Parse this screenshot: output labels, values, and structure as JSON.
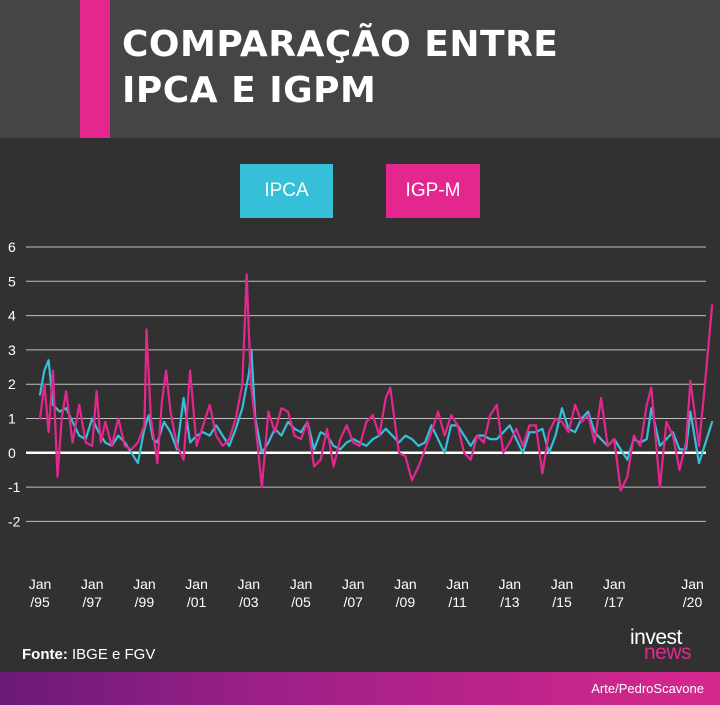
{
  "header": {
    "title_line1": "COMPARAÇÃO ENTRE",
    "title_line2": "IPCA E IGPM",
    "accent_color": "#e4278e",
    "background_color": "#454545"
  },
  "legend": {
    "ipca_label": "IPCA",
    "igpm_label": "IGP-M"
  },
  "footer": {
    "source_label": "Fonte:",
    "source_text": " IBGE e FGV",
    "brand_top": "invest",
    "brand_bottom": "news",
    "credit": "Arte/PedroScavone"
  },
  "chart_data": {
    "type": "line",
    "xlabel": "",
    "ylabel": "",
    "ylim": [
      -2,
      6
    ],
    "yticks": [
      "6",
      "5",
      "4",
      "3",
      "2",
      "1",
      "0",
      "-1",
      "-2"
    ],
    "ytick_values": [
      6,
      5,
      4,
      3,
      2,
      1,
      0,
      -1,
      -2
    ],
    "grid": true,
    "legend_position": "top-center",
    "x_tick_labels": [
      {
        "line1": "Jan",
        "line2": "/95",
        "date": 1995.0
      },
      {
        "line1": "Jan",
        "line2": "/97",
        "date": 1997.0
      },
      {
        "line1": "Jan",
        "line2": "/99",
        "date": 1999.0
      },
      {
        "line1": "Jan",
        "line2": "/01",
        "date": 2001.0
      },
      {
        "line1": "Jan",
        "line2": "/03",
        "date": 2003.0
      },
      {
        "line1": "Jan",
        "line2": "/05",
        "date": 2005.0
      },
      {
        "line1": "Jan",
        "line2": "/07",
        "date": 2007.0
      },
      {
        "line1": "Jan",
        "line2": "/09",
        "date": 2009.0
      },
      {
        "line1": "Jan",
        "line2": "/11",
        "date": 2011.0
      },
      {
        "line1": "Jan",
        "line2": "/13",
        "date": 2013.0
      },
      {
        "line1": "Jan",
        "line2": "/15",
        "date": 2015.0
      },
      {
        "line1": "Jan",
        "line2": "/17",
        "date": 2017.0
      },
      {
        "line1": "Jan",
        "line2": "/20",
        "date": 2020.0
      }
    ],
    "series": [
      {
        "name": "IPCA",
        "color": "#35bfd8",
        "points": [
          [
            1995.0,
            1.7
          ],
          [
            1995.17,
            2.4
          ],
          [
            1995.33,
            2.7
          ],
          [
            1995.5,
            1.4
          ],
          [
            1995.75,
            1.2
          ],
          [
            1996.0,
            1.3
          ],
          [
            1996.25,
            0.9
          ],
          [
            1996.5,
            0.5
          ],
          [
            1996.75,
            0.4
          ],
          [
            1997.0,
            1.0
          ],
          [
            1997.25,
            0.6
          ],
          [
            1997.5,
            0.3
          ],
          [
            1997.75,
            0.2
          ],
          [
            1998.0,
            0.5
          ],
          [
            1998.25,
            0.3
          ],
          [
            1998.5,
            0.0
          ],
          [
            1998.75,
            -0.3
          ],
          [
            1999.0,
            0.7
          ],
          [
            1999.17,
            1.1
          ],
          [
            1999.33,
            0.4
          ],
          [
            1999.5,
            0.3
          ],
          [
            1999.75,
            0.9
          ],
          [
            2000.0,
            0.6
          ],
          [
            2000.25,
            0.1
          ],
          [
            2000.5,
            1.6
          ],
          [
            2000.75,
            0.3
          ],
          [
            2001.0,
            0.5
          ],
          [
            2001.25,
            0.6
          ],
          [
            2001.5,
            0.5
          ],
          [
            2001.75,
            0.8
          ],
          [
            2002.0,
            0.5
          ],
          [
            2002.25,
            0.2
          ],
          [
            2002.5,
            0.7
          ],
          [
            2002.75,
            1.3
          ],
          [
            2003.0,
            2.3
          ],
          [
            2003.1,
            3.0
          ],
          [
            2003.25,
            1.0
          ],
          [
            2003.5,
            0.0
          ],
          [
            2003.75,
            0.3
          ],
          [
            2004.0,
            0.7
          ],
          [
            2004.25,
            0.5
          ],
          [
            2004.5,
            0.9
          ],
          [
            2004.75,
            0.7
          ],
          [
            2005.0,
            0.6
          ],
          [
            2005.25,
            0.9
          ],
          [
            2005.5,
            0.1
          ],
          [
            2005.75,
            0.6
          ],
          [
            2006.0,
            0.5
          ],
          [
            2006.25,
            0.2
          ],
          [
            2006.5,
            0.1
          ],
          [
            2006.75,
            0.3
          ],
          [
            2007.0,
            0.4
          ],
          [
            2007.25,
            0.3
          ],
          [
            2007.5,
            0.2
          ],
          [
            2007.75,
            0.4
          ],
          [
            2008.0,
            0.5
          ],
          [
            2008.25,
            0.7
          ],
          [
            2008.5,
            0.5
          ],
          [
            2008.75,
            0.3
          ],
          [
            2009.0,
            0.5
          ],
          [
            2009.25,
            0.4
          ],
          [
            2009.5,
            0.2
          ],
          [
            2009.75,
            0.3
          ],
          [
            2010.0,
            0.8
          ],
          [
            2010.25,
            0.4
          ],
          [
            2010.5,
            0.0
          ],
          [
            2010.75,
            0.8
          ],
          [
            2011.0,
            0.8
          ],
          [
            2011.25,
            0.5
          ],
          [
            2011.5,
            0.2
          ],
          [
            2011.75,
            0.5
          ],
          [
            2012.0,
            0.5
          ],
          [
            2012.25,
            0.4
          ],
          [
            2012.5,
            0.4
          ],
          [
            2012.75,
            0.6
          ],
          [
            2013.0,
            0.8
          ],
          [
            2013.25,
            0.4
          ],
          [
            2013.5,
            0.0
          ],
          [
            2013.75,
            0.6
          ],
          [
            2014.0,
            0.6
          ],
          [
            2014.25,
            0.7
          ],
          [
            2014.5,
            0.0
          ],
          [
            2014.75,
            0.5
          ],
          [
            2015.0,
            1.3
          ],
          [
            2015.25,
            0.7
          ],
          [
            2015.5,
            0.6
          ],
          [
            2015.75,
            1.0
          ],
          [
            2016.0,
            1.2
          ],
          [
            2016.25,
            0.6
          ],
          [
            2016.5,
            0.4
          ],
          [
            2016.75,
            0.2
          ],
          [
            2017.0,
            0.4
          ],
          [
            2017.25,
            0.1
          ],
          [
            2017.5,
            -0.2
          ],
          [
            2017.75,
            0.4
          ],
          [
            2018.0,
            0.3
          ],
          [
            2018.25,
            0.4
          ],
          [
            2018.42,
            1.3
          ],
          [
            2018.75,
            0.2
          ],
          [
            2019.0,
            0.4
          ],
          [
            2019.25,
            0.6
          ],
          [
            2019.5,
            0.1
          ],
          [
            2019.75,
            0.1
          ],
          [
            2019.92,
            1.2
          ],
          [
            2020.25,
            -0.3
          ],
          [
            2020.5,
            0.3
          ],
          [
            2020.75,
            0.9
          ]
        ]
      },
      {
        "name": "IGP-M",
        "color": "#e4278e",
        "points": [
          [
            1995.0,
            1.0
          ],
          [
            1995.17,
            2.0
          ],
          [
            1995.33,
            0.6
          ],
          [
            1995.5,
            2.4
          ],
          [
            1995.67,
            -0.7
          ],
          [
            1995.83,
            1.0
          ],
          [
            1996.0,
            1.8
          ],
          [
            1996.25,
            0.3
          ],
          [
            1996.5,
            1.4
          ],
          [
            1996.75,
            0.3
          ],
          [
            1997.0,
            0.2
          ],
          [
            1997.17,
            1.8
          ],
          [
            1997.33,
            0.3
          ],
          [
            1997.5,
            0.9
          ],
          [
            1997.75,
            0.2
          ],
          [
            1998.0,
            1.0
          ],
          [
            1998.25,
            0.2
          ],
          [
            1998.5,
            0.1
          ],
          [
            1998.75,
            0.3
          ],
          [
            1999.0,
            0.8
          ],
          [
            1999.08,
            3.6
          ],
          [
            1999.25,
            1.0
          ],
          [
            1999.5,
            -0.3
          ],
          [
            1999.67,
            1.5
          ],
          [
            1999.83,
            2.4
          ],
          [
            2000.0,
            1.2
          ],
          [
            2000.25,
            0.2
          ],
          [
            2000.5,
            -0.2
          ],
          [
            2000.75,
            2.4
          ],
          [
            2001.0,
            0.2
          ],
          [
            2001.25,
            0.8
          ],
          [
            2001.5,
            1.4
          ],
          [
            2001.75,
            0.5
          ],
          [
            2002.0,
            0.2
          ],
          [
            2002.25,
            0.4
          ],
          [
            2002.5,
            1.0
          ],
          [
            2002.75,
            2.0
          ],
          [
            2002.92,
            5.2
          ],
          [
            2003.08,
            2.0
          ],
          [
            2003.25,
            0.9
          ],
          [
            2003.5,
            -1.0
          ],
          [
            2003.75,
            1.2
          ],
          [
            2004.0,
            0.6
          ],
          [
            2004.25,
            1.3
          ],
          [
            2004.5,
            1.2
          ],
          [
            2004.75,
            0.5
          ],
          [
            2005.0,
            0.4
          ],
          [
            2005.25,
            0.9
          ],
          [
            2005.5,
            -0.4
          ],
          [
            2005.75,
            -0.2
          ],
          [
            2006.0,
            0.7
          ],
          [
            2006.25,
            -0.4
          ],
          [
            2006.5,
            0.4
          ],
          [
            2006.75,
            0.8
          ],
          [
            2007.0,
            0.3
          ],
          [
            2007.25,
            0.2
          ],
          [
            2007.5,
            0.9
          ],
          [
            2007.75,
            1.1
          ],
          [
            2008.0,
            0.5
          ],
          [
            2008.25,
            1.6
          ],
          [
            2008.42,
            1.9
          ],
          [
            2008.75,
            0.0
          ],
          [
            2009.0,
            -0.1
          ],
          [
            2009.25,
            -0.8
          ],
          [
            2009.5,
            -0.4
          ],
          [
            2009.75,
            0.1
          ],
          [
            2010.0,
            0.6
          ],
          [
            2010.25,
            1.2
          ],
          [
            2010.5,
            0.5
          ],
          [
            2010.75,
            1.1
          ],
          [
            2011.0,
            0.8
          ],
          [
            2011.25,
            0.0
          ],
          [
            2011.5,
            -0.2
          ],
          [
            2011.75,
            0.5
          ],
          [
            2012.0,
            0.3
          ],
          [
            2012.25,
            1.1
          ],
          [
            2012.5,
            1.4
          ],
          [
            2012.75,
            0.0
          ],
          [
            2013.0,
            0.3
          ],
          [
            2013.25,
            0.7
          ],
          [
            2013.5,
            0.2
          ],
          [
            2013.75,
            0.8
          ],
          [
            2014.0,
            0.8
          ],
          [
            2014.25,
            -0.6
          ],
          [
            2014.5,
            0.6
          ],
          [
            2014.75,
            1.0
          ],
          [
            2015.0,
            0.9
          ],
          [
            2015.25,
            0.6
          ],
          [
            2015.5,
            1.4
          ],
          [
            2015.75,
            0.9
          ],
          [
            2016.0,
            1.1
          ],
          [
            2016.25,
            0.3
          ],
          [
            2016.5,
            1.6
          ],
          [
            2016.75,
            0.2
          ],
          [
            2017.0,
            0.4
          ],
          [
            2017.25,
            -1.1
          ],
          [
            2017.5,
            -0.7
          ],
          [
            2017.75,
            0.5
          ],
          [
            2018.0,
            0.2
          ],
          [
            2018.25,
            1.4
          ],
          [
            2018.42,
            1.9
          ],
          [
            2018.75,
            -1.0
          ],
          [
            2019.0,
            0.9
          ],
          [
            2019.25,
            0.5
          ],
          [
            2019.5,
            -0.5
          ],
          [
            2019.75,
            0.3
          ],
          [
            2019.92,
            2.1
          ],
          [
            2020.25,
            0.2
          ],
          [
            2020.5,
            2.2
          ],
          [
            2020.75,
            4.3
          ]
        ]
      }
    ]
  }
}
